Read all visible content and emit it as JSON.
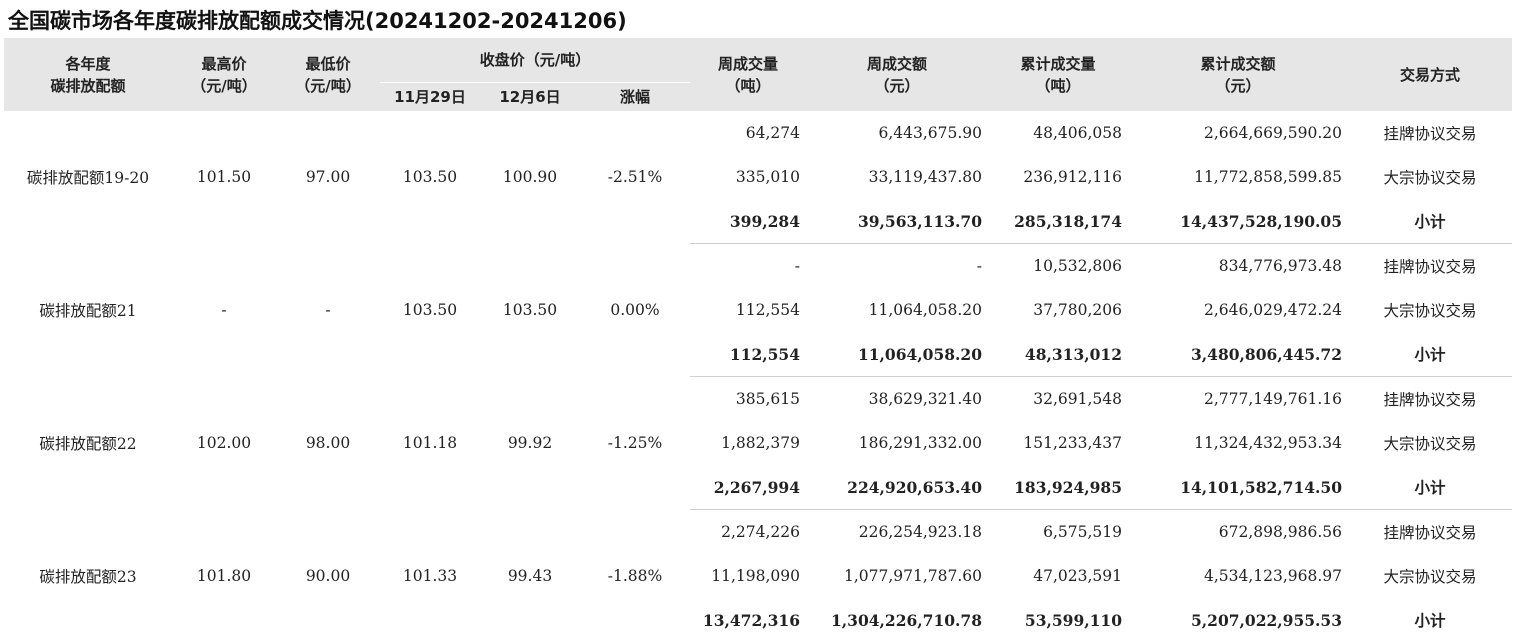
{
  "title": "全国碳市场各年度碳排放配额成交情况(20241202-20241206)",
  "headers": {
    "allowance": [
      "各年度",
      "碳排放配额"
    ],
    "high": [
      "最高价",
      "（元/吨）"
    ],
    "low": [
      "最低价",
      "（元/吨）"
    ],
    "closing_group": "收盘价（元/吨）",
    "nov29": "11月29日",
    "dec6": "12月6日",
    "change": "涨幅",
    "weekly_volume": [
      "周成交量",
      "（吨）"
    ],
    "weekly_amount": [
      "周成交额",
      "（元）"
    ],
    "cum_volume": [
      "累计成交量",
      "（吨）"
    ],
    "cum_amount": [
      "累计成交额",
      "（元）"
    ],
    "mode": "交易方式"
  },
  "groups": [
    {
      "name": "碳排放配额19-20",
      "high": "101.50",
      "low": "97.00",
      "nov29": "103.50",
      "dec6": "100.90",
      "change": "-2.51%",
      "rows": [
        {
          "weekly_volume": "64,274",
          "weekly_amount": "6,443,675.90",
          "cum_volume": "48,406,058",
          "cum_amount": "2,664,669,590.20",
          "mode": "挂牌协议交易"
        },
        {
          "weekly_volume": "335,010",
          "weekly_amount": "33,119,437.80",
          "cum_volume": "236,912,116",
          "cum_amount": "11,772,858,599.85",
          "mode": "大宗协议交易"
        },
        {
          "weekly_volume": "399,284",
          "weekly_amount": "39,563,113.70",
          "cum_volume": "285,318,174",
          "cum_amount": "14,437,528,190.05",
          "mode": "小计"
        }
      ]
    },
    {
      "name": "碳排放配额21",
      "high": "-",
      "low": "-",
      "nov29": "103.50",
      "dec6": "103.50",
      "change": "0.00%",
      "rows": [
        {
          "weekly_volume": "-",
          "weekly_amount": "-",
          "cum_volume": "10,532,806",
          "cum_amount": "834,776,973.48",
          "mode": "挂牌协议交易"
        },
        {
          "weekly_volume": "112,554",
          "weekly_amount": "11,064,058.20",
          "cum_volume": "37,780,206",
          "cum_amount": "2,646,029,472.24",
          "mode": "大宗协议交易"
        },
        {
          "weekly_volume": "112,554",
          "weekly_amount": "11,064,058.20",
          "cum_volume": "48,313,012",
          "cum_amount": "3,480,806,445.72",
          "mode": "小计"
        }
      ]
    },
    {
      "name": "碳排放配额22",
      "high": "102.00",
      "low": "98.00",
      "nov29": "101.18",
      "dec6": "99.92",
      "change": "-1.25%",
      "rows": [
        {
          "weekly_volume": "385,615",
          "weekly_amount": "38,629,321.40",
          "cum_volume": "32,691,548",
          "cum_amount": "2,777,149,761.16",
          "mode": "挂牌协议交易"
        },
        {
          "weekly_volume": "1,882,379",
          "weekly_amount": "186,291,332.00",
          "cum_volume": "151,233,437",
          "cum_amount": "11,324,432,953.34",
          "mode": "大宗协议交易"
        },
        {
          "weekly_volume": "2,267,994",
          "weekly_amount": "224,920,653.40",
          "cum_volume": "183,924,985",
          "cum_amount": "14,101,582,714.50",
          "mode": "小计"
        }
      ]
    },
    {
      "name": "碳排放配额23",
      "high": "101.80",
      "low": "90.00",
      "nov29": "101.33",
      "dec6": "99.43",
      "change": "-1.88%",
      "rows": [
        {
          "weekly_volume": "2,274,226",
          "weekly_amount": "226,254,923.18",
          "cum_volume": "6,575,519",
          "cum_amount": "672,898,986.56",
          "mode": "挂牌协议交易"
        },
        {
          "weekly_volume": "11,198,090",
          "weekly_amount": "1,077,971,787.60",
          "cum_volume": "47,023,591",
          "cum_amount": "4,534,123,968.97",
          "mode": "大宗协议交易"
        },
        {
          "weekly_volume": "13,472,316",
          "weekly_amount": "1,304,226,710.78",
          "cum_volume": "53,599,110",
          "cum_amount": "5,207,022,955.53",
          "mode": "小计"
        }
      ]
    }
  ]
}
